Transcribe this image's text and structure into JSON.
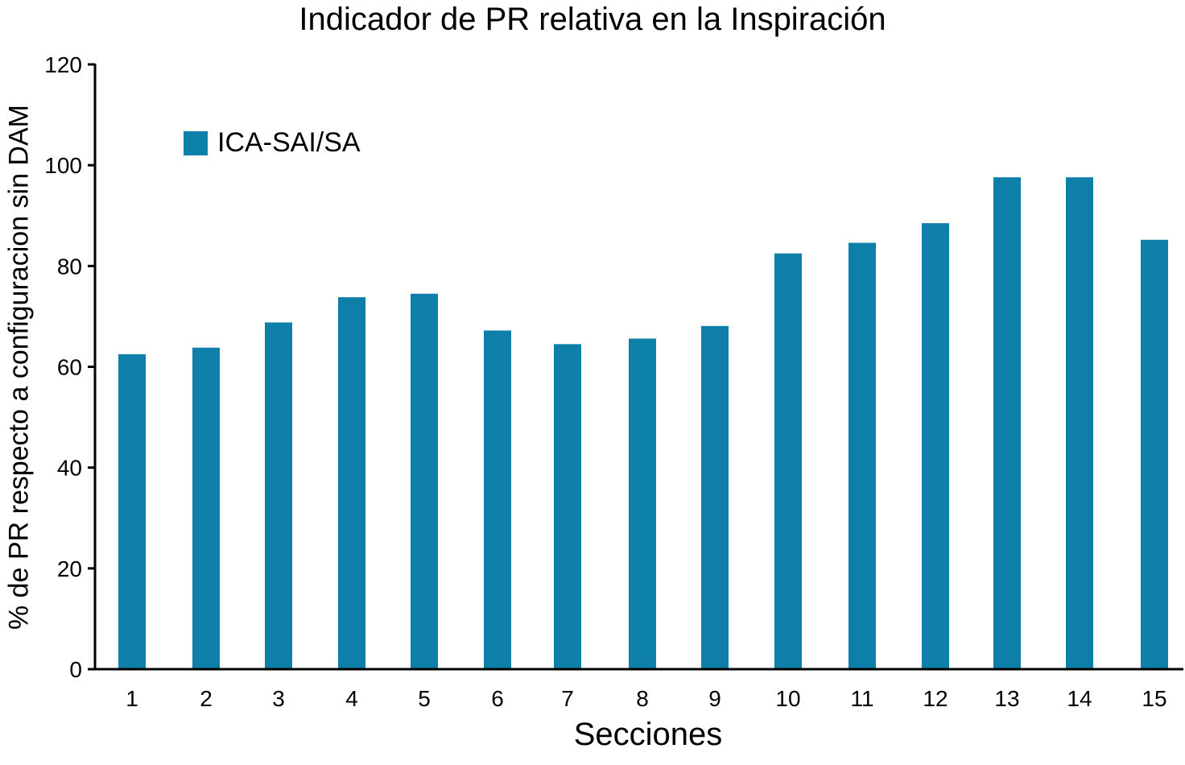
{
  "chart_data": {
    "type": "bar",
    "title": "Indicador de PR relativa en la Inspiración",
    "xlabel": "Secciones",
    "ylabel": "% de PR respecto a configuracion sin DAM",
    "categories": [
      "1",
      "2",
      "3",
      "4",
      "5",
      "6",
      "7",
      "8",
      "9",
      "10",
      "11",
      "12",
      "13",
      "14",
      "15"
    ],
    "series": [
      {
        "name": "ICA-SAI/SA",
        "color": "#0e7fa9",
        "values": [
          62.5,
          63.8,
          68.8,
          73.8,
          74.5,
          67.2,
          64.5,
          65.6,
          68.1,
          82.5,
          84.6,
          88.5,
          97.6,
          97.6,
          85.2
        ]
      }
    ],
    "ylim": [
      0,
      120
    ],
    "yticks": [
      0,
      20,
      40,
      60,
      80,
      100,
      120
    ],
    "grid": false,
    "legend_position": "top-left"
  }
}
